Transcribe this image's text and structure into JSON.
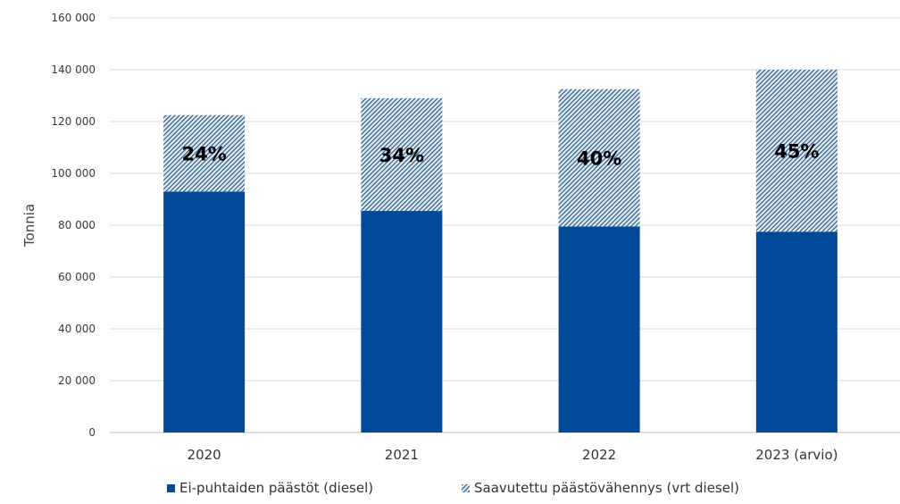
{
  "chart_data": {
    "type": "bar",
    "stacked": true,
    "categories": [
      "2020",
      "2021",
      "2022",
      "2023 (arvio)"
    ],
    "series": [
      {
        "name": "Ei-puhtaiden päästöt (diesel)",
        "values": [
          93000,
          85500,
          79500,
          77500
        ],
        "color": "#004a99",
        "pattern": "solid"
      },
      {
        "name": "Saavutettu päästövähennys (vrt diesel)",
        "values": [
          29500,
          43500,
          53000,
          62500
        ],
        "color": "#2f5f8f",
        "pattern": "hatched"
      }
    ],
    "segment_labels": [
      "24%",
      "34%",
      "40%",
      "45%"
    ],
    "ylabel": "Tonnia",
    "xlabel": "",
    "ylim": [
      0,
      160000
    ],
    "yticks": [
      0,
      20000,
      40000,
      60000,
      80000,
      100000,
      120000,
      140000,
      160000
    ],
    "ytick_labels": [
      "0",
      "20 000",
      "40 000",
      "60 000",
      "80 000",
      "100 000",
      "120 000",
      "140 000",
      "160 000"
    ],
    "grid": "horizontal",
    "legend_position": "bottom"
  }
}
